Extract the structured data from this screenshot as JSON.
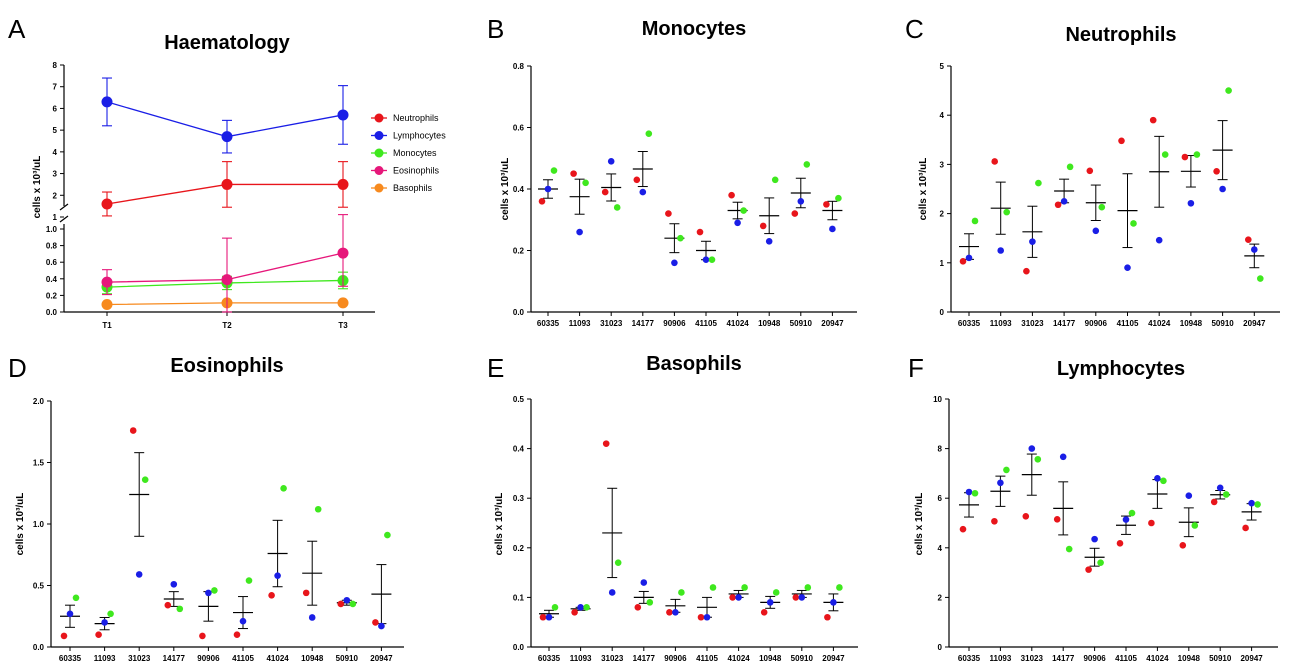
{
  "panels": [
    {
      "letter": "A",
      "title": "Haematology",
      "ylabel": "cells x 10³/uL",
      "upper_ticks": [
        "1",
        "2",
        "3",
        "4",
        "5",
        "6",
        "7",
        "8"
      ],
      "lower_ticks": [
        "0.0",
        "0.2",
        "0.4",
        "0.6",
        "0.8",
        "1.0"
      ],
      "legend": [
        {
          "label": "Neutrophils",
          "color": "#e8151b"
        },
        {
          "label": "Lymphocytes",
          "color": "#1a1ee6"
        },
        {
          "label": "Monocytes",
          "color": "#3fe81e"
        },
        {
          "label": "Eosinophils",
          "color": "#e6177a"
        },
        {
          "label": "Basophils",
          "color": "#f78a1e"
        }
      ]
    },
    {
      "letter": "B",
      "title": "Monocytes",
      "ylabel": "cells x 10³/uL"
    },
    {
      "letter": "C",
      "title": "Neutrophils",
      "ylabel": "cells x 10³/uL"
    },
    {
      "letter": "D",
      "title": "Eosinophils",
      "ylabel": "cells x 10³/uL"
    },
    {
      "letter": "E",
      "title": "Basophils",
      "ylabel": "cells x 10³/uL"
    },
    {
      "letter": "F",
      "title": "Lymphocytes",
      "ylabel": "cells x 10³/uL"
    }
  ],
  "chart_data": [
    {
      "type": "line",
      "title": "Haematology",
      "ylabel": "cells x 10³/uL",
      "categories": [
        "T1",
        "T2",
        "T3"
      ],
      "yaxis": "broken: 0–1.0 lower segment, 1–8 upper segment",
      "series": [
        {
          "name": "Neutrophils",
          "color": "#e8151b",
          "values": [
            1.6,
            2.5,
            2.5
          ],
          "err": [
            0.55,
            1.05,
            1.05
          ]
        },
        {
          "name": "Lymphocytes",
          "color": "#1a1ee6",
          "values": [
            6.3,
            4.7,
            5.7
          ],
          "err": [
            1.1,
            0.75,
            1.35
          ]
        },
        {
          "name": "Monocytes",
          "color": "#3fe81e",
          "values": [
            0.3,
            0.35,
            0.38
          ],
          "err": [
            0.08,
            0.08,
            0.1
          ]
        },
        {
          "name": "Eosinophils",
          "color": "#e6177a",
          "values": [
            0.36,
            0.39,
            0.71
          ],
          "err": [
            0.15,
            0.5,
            0.4
          ]
        },
        {
          "name": "Basophils",
          "color": "#f78a1e",
          "values": [
            0.09,
            0.11,
            0.11
          ],
          "err": [
            0.0,
            0.0,
            0.0
          ]
        }
      ]
    },
    {
      "type": "scatter",
      "title": "Monocytes",
      "ylabel": "cells x 10³/uL",
      "ylim": [
        0,
        0.8
      ],
      "yticks": [
        "0.0",
        "0.2",
        "0.4",
        "0.6",
        "0.8"
      ],
      "categories": [
        "60335",
        "11093",
        "31023",
        "14177",
        "90906",
        "41105",
        "41024",
        "10948",
        "50910",
        "20947"
      ],
      "points": [
        {
          "red": 0.36,
          "blue": 0.4,
          "green": 0.46
        },
        {
          "red": 0.45,
          "blue": 0.26,
          "green": 0.42
        },
        {
          "red": 0.39,
          "blue": 0.49,
          "green": 0.34
        },
        {
          "red": 0.43,
          "blue": 0.39,
          "green": 0.58
        },
        {
          "red": 0.32,
          "blue": 0.16,
          "green": 0.24
        },
        {
          "red": 0.26,
          "blue": 0.17,
          "green": 0.17
        },
        {
          "red": 0.38,
          "blue": 0.29,
          "green": 0.33
        },
        {
          "red": 0.28,
          "blue": 0.23,
          "green": 0.43
        },
        {
          "red": 0.32,
          "blue": 0.36,
          "green": 0.48
        },
        {
          "red": 0.35,
          "blue": 0.27,
          "green": 0.37
        }
      ],
      "mean": [
        0.4,
        0.375,
        0.405,
        0.465,
        0.24,
        0.2,
        0.33,
        0.313,
        0.387,
        0.33
      ],
      "sem": [
        0.03,
        0.057,
        0.044,
        0.057,
        0.047,
        0.03,
        0.027,
        0.058,
        0.048,
        0.03
      ]
    },
    {
      "type": "scatter",
      "title": "Neutrophils",
      "ylabel": "cells x 10³/uL",
      "ylim": [
        0,
        5
      ],
      "yticks": [
        "0",
        "1",
        "2",
        "3",
        "4",
        "5"
      ],
      "categories": [
        "60335",
        "11093",
        "31023",
        "14177",
        "90906",
        "41105",
        "41024",
        "10948",
        "50910",
        "20947"
      ],
      "points": [
        {
          "red": 1.03,
          "blue": 1.1,
          "green": 1.85
        },
        {
          "red": 3.06,
          "blue": 1.25,
          "green": 2.03
        },
        {
          "red": 0.83,
          "blue": 1.43,
          "green": 2.62
        },
        {
          "red": 2.18,
          "blue": 2.25,
          "green": 2.95
        },
        {
          "red": 2.87,
          "blue": 1.65,
          "green": 2.13
        },
        {
          "red": 3.48,
          "blue": 0.9,
          "green": 1.8
        },
        {
          "red": 3.9,
          "blue": 1.46,
          "green": 3.2
        },
        {
          "red": 3.15,
          "blue": 2.21,
          "green": 3.2
        },
        {
          "red": 2.86,
          "blue": 2.5,
          "green": 4.5
        },
        {
          "red": 1.47,
          "blue": 1.27,
          "green": 0.68
        }
      ],
      "mean": [
        1.33,
        2.11,
        1.63,
        2.46,
        2.22,
        2.06,
        2.85,
        2.86,
        3.29,
        1.14
      ],
      "sem": [
        0.26,
        0.53,
        0.52,
        0.24,
        0.36,
        0.75,
        0.72,
        0.32,
        0.6,
        0.24
      ]
    },
    {
      "type": "scatter",
      "title": "Eosinophils",
      "ylabel": "cells x 10³/uL",
      "ylim": [
        0,
        2.0
      ],
      "yticks": [
        "0.0",
        "0.5",
        "1.0",
        "1.5",
        "2.0"
      ],
      "categories": [
        "60335",
        "11093",
        "31023",
        "14177",
        "90906",
        "41105",
        "41024",
        "10948",
        "50910",
        "20947"
      ],
      "points": [
        {
          "red": 0.09,
          "blue": 0.27,
          "green": 0.4
        },
        {
          "red": 0.1,
          "blue": 0.2,
          "green": 0.27
        },
        {
          "red": 1.76,
          "blue": 0.59,
          "green": 1.36
        },
        {
          "red": 0.34,
          "blue": 0.51,
          "green": 0.31
        },
        {
          "red": 0.09,
          "blue": 0.44,
          "green": 0.46
        },
        {
          "red": 0.1,
          "blue": 0.21,
          "green": 0.54
        },
        {
          "red": 0.42,
          "blue": 0.58,
          "green": 1.29
        },
        {
          "red": 0.44,
          "blue": 0.24,
          "green": 1.12
        },
        {
          "red": 0.35,
          "blue": 0.38,
          "green": 0.35
        },
        {
          "red": 0.2,
          "blue": 0.17,
          "green": 0.91
        }
      ],
      "mean": [
        0.25,
        0.19,
        1.24,
        0.39,
        0.33,
        0.28,
        0.76,
        0.6,
        0.36,
        0.43
      ],
      "sem": [
        0.09,
        0.05,
        0.34,
        0.06,
        0.12,
        0.13,
        0.27,
        0.26,
        0.02,
        0.24
      ]
    },
    {
      "type": "scatter",
      "title": "Basophils",
      "ylabel": "cells x 10³/uL",
      "ylim": [
        0,
        0.5
      ],
      "yticks": [
        "0.0",
        "0.1",
        "0.2",
        "0.3",
        "0.4",
        "0.5"
      ],
      "categories": [
        "60335",
        "11093",
        "31023",
        "14177",
        "90906",
        "41105",
        "41024",
        "10948",
        "50910",
        "20947"
      ],
      "points": [
        {
          "red": 0.06,
          "blue": 0.06,
          "green": 0.08
        },
        {
          "red": 0.07,
          "blue": 0.08,
          "green": 0.08
        },
        {
          "red": 0.41,
          "blue": 0.11,
          "green": 0.17
        },
        {
          "red": 0.08,
          "blue": 0.13,
          "green": 0.09
        },
        {
          "red": 0.07,
          "blue": 0.07,
          "green": 0.11
        },
        {
          "red": 0.06,
          "blue": 0.06,
          "green": 0.12
        },
        {
          "red": 0.1,
          "blue": 0.1,
          "green": 0.12
        },
        {
          "red": 0.07,
          "blue": 0.09,
          "green": 0.11
        },
        {
          "red": 0.1,
          "blue": 0.1,
          "green": 0.12
        },
        {
          "red": 0.06,
          "blue": 0.09,
          "green": 0.12
        }
      ],
      "mean": [
        0.067,
        0.077,
        0.23,
        0.1,
        0.083,
        0.08,
        0.107,
        0.09,
        0.107,
        0.09
      ],
      "sem": [
        0.007,
        0.003,
        0.09,
        0.012,
        0.013,
        0.02,
        0.007,
        0.012,
        0.007,
        0.017
      ]
    },
    {
      "type": "scatter",
      "title": "Lymphocytes",
      "ylabel": "cells x 10³/uL",
      "ylim": [
        0,
        10
      ],
      "yticks": [
        "0",
        "2",
        "4",
        "6",
        "8",
        "10"
      ],
      "categories": [
        "60335",
        "11093",
        "31023",
        "14177",
        "90906",
        "41105",
        "41024",
        "10948",
        "50910",
        "20947"
      ],
      "points": [
        {
          "red": 4.75,
          "blue": 6.25,
          "green": 6.2
        },
        {
          "red": 5.07,
          "blue": 6.62,
          "green": 7.14
        },
        {
          "red": 5.27,
          "blue": 8.0,
          "green": 7.57
        },
        {
          "red": 5.15,
          "blue": 7.67,
          "green": 3.95
        },
        {
          "red": 3.12,
          "blue": 4.35,
          "green": 3.4
        },
        {
          "red": 4.18,
          "blue": 5.14,
          "green": 5.4
        },
        {
          "red": 5.0,
          "blue": 6.8,
          "green": 6.7
        },
        {
          "red": 4.1,
          "blue": 6.1,
          "green": 4.9
        },
        {
          "red": 5.85,
          "blue": 6.42,
          "green": 6.15
        },
        {
          "red": 4.8,
          "blue": 5.8,
          "green": 5.75
        }
      ],
      "mean": [
        5.73,
        6.28,
        6.95,
        5.59,
        3.62,
        4.91,
        6.17,
        5.03,
        6.14,
        5.45
      ],
      "sem": [
        0.49,
        0.61,
        0.83,
        1.07,
        0.36,
        0.37,
        0.58,
        0.58,
        0.17,
        0.33
      ]
    }
  ]
}
